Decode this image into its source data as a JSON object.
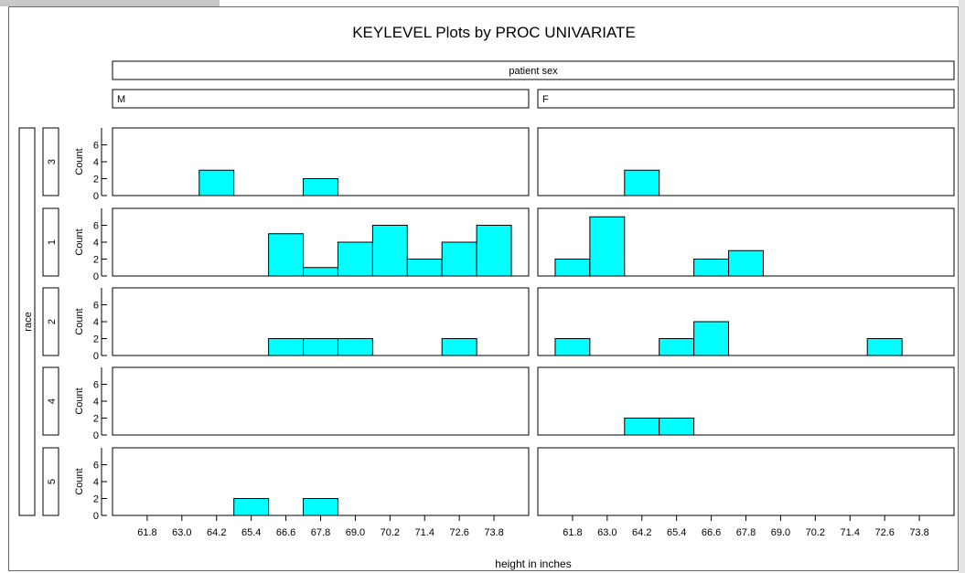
{
  "colors": {
    "bar_fill": "#00ffff",
    "bar_stroke": "#000000"
  },
  "chart_data": {
    "type": "bar",
    "title": "KEYLEVEL Plots by PROC UNIVARIATE",
    "column_header": "patient sex",
    "row_header": "race",
    "xlabel": "height in inches",
    "ylabel": "Count",
    "columns": [
      "M",
      "F"
    ],
    "rows": [
      "3",
      "1",
      "2",
      "4",
      "5"
    ],
    "xticks": [
      "61.8",
      "63.0",
      "64.2",
      "65.4",
      "66.6",
      "67.8",
      "69.0",
      "70.2",
      "71.4",
      "72.6",
      "73.8"
    ],
    "x_range": [
      60.6,
      75.0
    ],
    "bin_width": 1.2,
    "yticks": [
      0,
      2,
      4,
      6
    ],
    "ylim": [
      0,
      8
    ],
    "panels": [
      {
        "row": "3",
        "col": "M",
        "bins": [
          {
            "x": 64.2,
            "count": 3
          },
          {
            "x": 67.8,
            "count": 2
          }
        ]
      },
      {
        "row": "3",
        "col": "F",
        "bins": [
          {
            "x": 64.2,
            "count": 3
          }
        ]
      },
      {
        "row": "1",
        "col": "M",
        "bins": [
          {
            "x": 66.6,
            "count": 5
          },
          {
            "x": 67.8,
            "count": 1
          },
          {
            "x": 69.0,
            "count": 4
          },
          {
            "x": 70.2,
            "count": 6
          },
          {
            "x": 71.4,
            "count": 2
          },
          {
            "x": 72.6,
            "count": 4
          },
          {
            "x": 73.8,
            "count": 6
          }
        ]
      },
      {
        "row": "1",
        "col": "F",
        "bins": [
          {
            "x": 61.8,
            "count": 2
          },
          {
            "x": 63.0,
            "count": 7
          },
          {
            "x": 66.6,
            "count": 2
          },
          {
            "x": 67.8,
            "count": 3
          }
        ]
      },
      {
        "row": "2",
        "col": "M",
        "bins": [
          {
            "x": 66.6,
            "count": 2
          },
          {
            "x": 67.8,
            "count": 2
          },
          {
            "x": 69.0,
            "count": 2
          },
          {
            "x": 72.6,
            "count": 2
          }
        ]
      },
      {
        "row": "2",
        "col": "F",
        "bins": [
          {
            "x": 61.8,
            "count": 2
          },
          {
            "x": 65.4,
            "count": 2
          },
          {
            "x": 66.6,
            "count": 4
          },
          {
            "x": 72.6,
            "count": 2
          }
        ]
      },
      {
        "row": "4",
        "col": "M",
        "bins": []
      },
      {
        "row": "4",
        "col": "F",
        "bins": [
          {
            "x": 64.2,
            "count": 2
          },
          {
            "x": 65.4,
            "count": 2
          }
        ]
      },
      {
        "row": "5",
        "col": "M",
        "bins": [
          {
            "x": 65.4,
            "count": 2
          },
          {
            "x": 67.8,
            "count": 2
          }
        ]
      },
      {
        "row": "5",
        "col": "F",
        "bins": []
      }
    ]
  }
}
